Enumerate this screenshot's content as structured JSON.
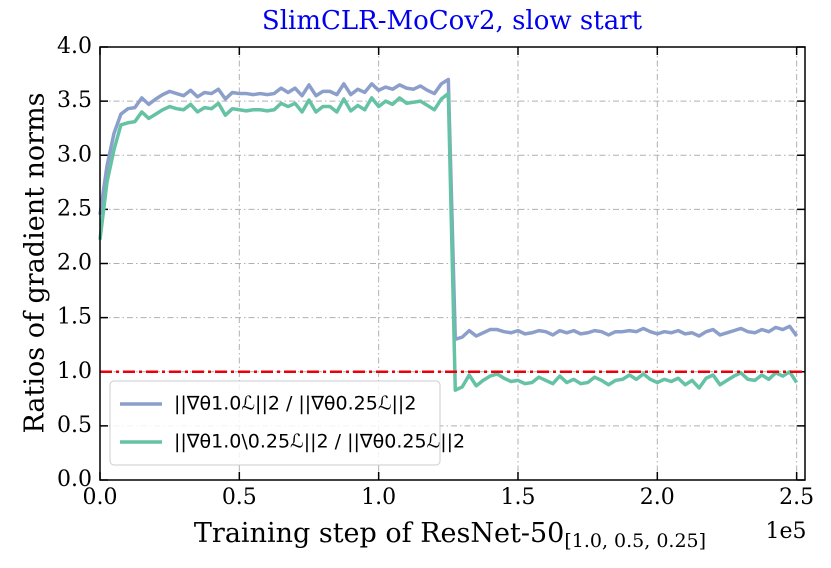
{
  "chart_data": {
    "type": "line",
    "title": "SlimCLR-MoCov2, slow start",
    "xlabel": "Training step of ResNet-50",
    "xlabel_subscript": "[1.0, 0.5, 0.25]",
    "ylabel": "Ratios of gradient norms",
    "x_offset_text": "1e5",
    "xlim": [
      0,
      2.53
    ],
    "ylim": [
      0,
      4
    ],
    "xticks": [
      {
        "value": 0,
        "label": "0.0"
      },
      {
        "value": 0.5,
        "label": "0.5"
      },
      {
        "value": 1,
        "label": "1.0"
      },
      {
        "value": 1.5,
        "label": "1.5"
      },
      {
        "value": 2,
        "label": "2.0"
      },
      {
        "value": 2.5,
        "label": "2.5"
      }
    ],
    "yticks": [
      {
        "value": 0,
        "label": "0.0"
      },
      {
        "value": 0.5,
        "label": "0.5"
      },
      {
        "value": 1,
        "label": "1.0"
      },
      {
        "value": 1.5,
        "label": "1.5"
      },
      {
        "value": 2,
        "label": "2.0"
      },
      {
        "value": 2.5,
        "label": "2.5"
      },
      {
        "value": 3,
        "label": "3.0"
      },
      {
        "value": 3.5,
        "label": "3.5"
      },
      {
        "value": 4,
        "label": "4.0"
      }
    ],
    "grid": true,
    "legend": "lower left",
    "reference_line": {
      "value": 1.0,
      "color": "#e8000b"
    },
    "x": [
      0,
      0.025,
      0.05,
      0.075,
      0.1,
      0.125,
      0.15,
      0.175,
      0.2,
      0.225,
      0.25,
      0.275,
      0.3,
      0.325,
      0.35,
      0.375,
      0.4,
      0.425,
      0.45,
      0.475,
      0.5,
      0.525,
      0.55,
      0.575,
      0.6,
      0.625,
      0.65,
      0.675,
      0.7,
      0.725,
      0.75,
      0.775,
      0.8,
      0.825,
      0.85,
      0.875,
      0.9,
      0.925,
      0.95,
      0.975,
      1,
      1.025,
      1.05,
      1.075,
      1.1,
      1.125,
      1.15,
      1.175,
      1.2,
      1.225,
      1.25,
      1.275,
      1.3,
      1.325,
      1.35,
      1.375,
      1.4,
      1.425,
      1.45,
      1.475,
      1.5,
      1.525,
      1.55,
      1.575,
      1.6,
      1.625,
      1.65,
      1.675,
      1.7,
      1.725,
      1.75,
      1.775,
      1.8,
      1.825,
      1.85,
      1.875,
      1.9,
      1.925,
      1.95,
      1.975,
      2,
      2.025,
      2.05,
      2.075,
      2.1,
      2.125,
      2.15,
      2.175,
      2.2,
      2.225,
      2.25,
      2.275,
      2.3,
      2.325,
      2.35,
      2.375,
      2.4,
      2.425,
      2.45,
      2.475,
      2.5
    ],
    "series": [
      {
        "name": "||∇θ1.0ℒ||2 / ||∇θ0.25ℒ||2",
        "color": "#8c9fca",
        "values": [
          2.45,
          2.9,
          3.2,
          3.38,
          3.43,
          3.44,
          3.53,
          3.47,
          3.52,
          3.56,
          3.59,
          3.57,
          3.55,
          3.6,
          3.54,
          3.58,
          3.57,
          3.61,
          3.52,
          3.58,
          3.57,
          3.57,
          3.56,
          3.57,
          3.56,
          3.57,
          3.62,
          3.58,
          3.62,
          3.55,
          3.65,
          3.55,
          3.59,
          3.59,
          3.56,
          3.66,
          3.56,
          3.61,
          3.58,
          3.66,
          3.6,
          3.63,
          3.61,
          3.65,
          3.62,
          3.61,
          3.64,
          3.6,
          3.57,
          3.66,
          3.7,
          1.3,
          1.32,
          1.38,
          1.33,
          1.36,
          1.39,
          1.39,
          1.37,
          1.36,
          1.38,
          1.35,
          1.36,
          1.38,
          1.37,
          1.34,
          1.38,
          1.36,
          1.38,
          1.35,
          1.36,
          1.38,
          1.37,
          1.34,
          1.37,
          1.37,
          1.38,
          1.37,
          1.4,
          1.37,
          1.35,
          1.37,
          1.36,
          1.38,
          1.35,
          1.36,
          1.33,
          1.37,
          1.39,
          1.34,
          1.36,
          1.38,
          1.4,
          1.37,
          1.36,
          1.39,
          1.37,
          1.41,
          1.39,
          1.42,
          1.33
        ]
      },
      {
        "name": "||∇θ1.0\\0.25ℒ||2 / ||∇θ0.25ℒ||2",
        "color": "#66c2a5",
        "values": [
          2.22,
          2.75,
          3.05,
          3.28,
          3.3,
          3.31,
          3.4,
          3.34,
          3.38,
          3.42,
          3.45,
          3.43,
          3.42,
          3.47,
          3.4,
          3.44,
          3.43,
          3.48,
          3.37,
          3.43,
          3.42,
          3.41,
          3.42,
          3.42,
          3.41,
          3.42,
          3.48,
          3.45,
          3.48,
          3.4,
          3.51,
          3.4,
          3.45,
          3.45,
          3.4,
          3.52,
          3.41,
          3.46,
          3.42,
          3.53,
          3.45,
          3.5,
          3.47,
          3.53,
          3.48,
          3.49,
          3.5,
          3.46,
          3.42,
          3.52,
          3.57,
          0.83,
          0.86,
          0.97,
          0.87,
          0.92,
          0.96,
          0.98,
          0.94,
          0.91,
          0.92,
          0.89,
          0.9,
          0.95,
          0.92,
          0.89,
          0.96,
          0.9,
          0.93,
          0.89,
          0.9,
          0.95,
          0.92,
          0.88,
          0.92,
          0.93,
          0.97,
          0.93,
          0.98,
          0.93,
          0.9,
          0.93,
          0.91,
          0.94,
          0.88,
          0.92,
          0.85,
          0.94,
          0.97,
          0.88,
          0.92,
          0.96,
          0.99,
          0.93,
          0.92,
          0.97,
          0.93,
          0.99,
          0.96,
          1.0,
          0.9
        ]
      }
    ]
  }
}
